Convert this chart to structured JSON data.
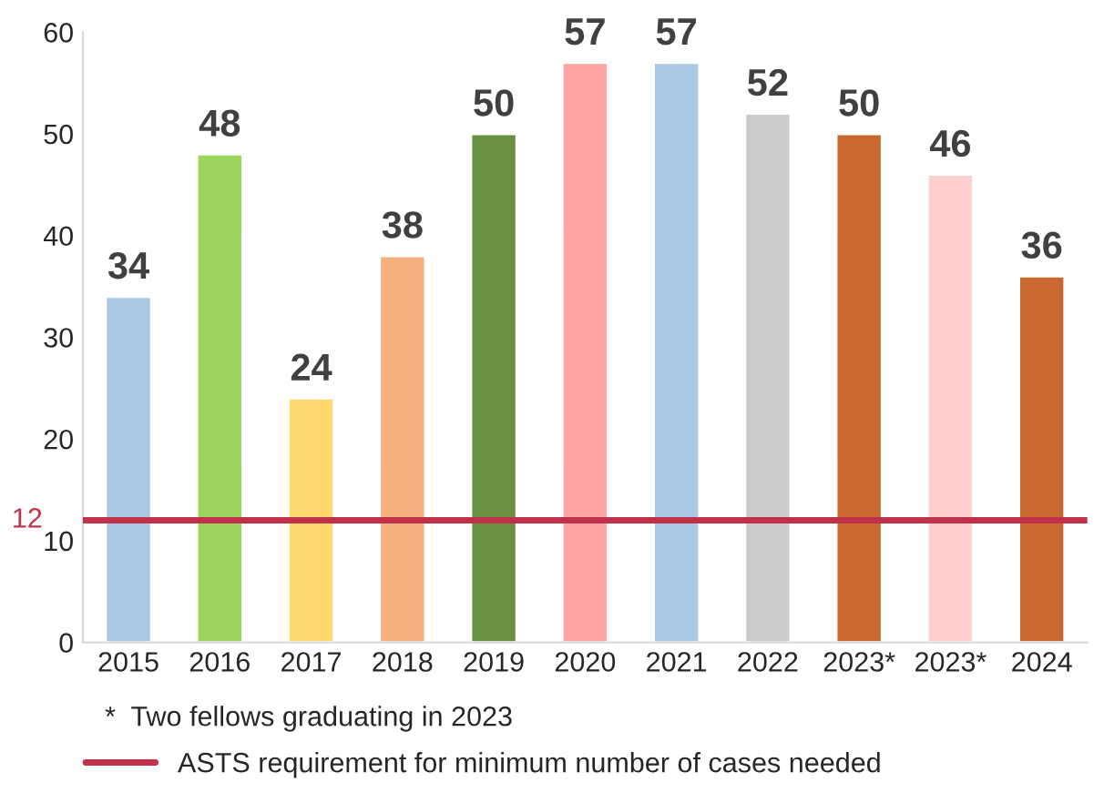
{
  "chart_data": {
    "type": "bar",
    "categories": [
      "2015",
      "2016",
      "2017",
      "2018",
      "2019",
      "2020",
      "2021",
      "2022",
      "2023*",
      "2023*",
      "2024"
    ],
    "values": [
      34,
      48,
      24,
      38,
      50,
      57,
      57,
      52,
      50,
      46,
      36
    ],
    "colors": [
      "#a9c8e8",
      "#9bd55e",
      "#ffd970",
      "#f4b07e",
      "#679141",
      "#ffa3a3",
      "#a9c8e8",
      "#cccccc",
      "#c9682f",
      "#ffcfcf",
      "#c9682f"
    ],
    "ylim": [
      0,
      60
    ],
    "yticks": [
      0,
      10,
      20,
      30,
      40,
      50,
      60
    ],
    "data_labels": true,
    "grid": false,
    "legend": "bottom",
    "ref_lines": [
      {
        "axis": "y",
        "value": 12,
        "label": "ASTS requirement for minimum number of cases needed",
        "color": "#c0324a",
        "line_style": "solid"
      }
    ],
    "annotations": [
      "12",
      "*  Two fellows graduating in 2023"
    ]
  }
}
